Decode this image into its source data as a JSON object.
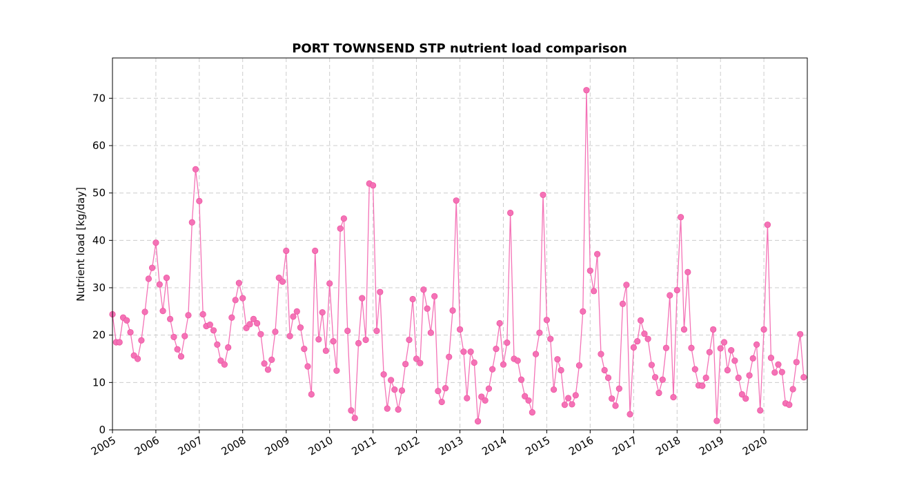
{
  "chart_data": {
    "type": "line",
    "title": "PORT TOWNSEND STP nutrient load comparison",
    "xlabel": "",
    "ylabel": "Nutrient load [kg/day]",
    "ylim": [
      0,
      78.5
    ],
    "xlim": [
      "2005-01-01",
      "2020-12-31"
    ],
    "yticks": [
      0,
      10,
      20,
      30,
      40,
      50,
      60,
      70
    ],
    "xticks": [
      "2005",
      "2006",
      "2007",
      "2008",
      "2009",
      "2010",
      "2011",
      "2012",
      "2013",
      "2014",
      "2015",
      "2016",
      "2017",
      "2018",
      "2019",
      "2020"
    ],
    "grid": true,
    "legend": "none",
    "color": "#f472b6",
    "series": [
      {
        "x_start": "2005-01",
        "x_step": "month",
        "values": [
          24.4,
          18.5,
          18.5,
          23.7,
          23.1,
          20.6,
          15.7,
          15.0,
          18.9,
          24.9,
          31.9,
          34.2,
          39.5,
          30.7,
          25.1,
          32.1,
          23.4,
          19.6,
          17.0,
          15.5,
          19.8,
          24.2,
          43.8,
          55.0,
          48.3,
          24.4,
          21.9,
          22.2,
          21.0,
          18.0,
          14.6,
          13.8,
          17.4,
          23.7,
          27.4,
          31.0,
          27.8,
          21.5,
          22.3,
          23.4,
          22.5,
          20.2,
          14.0,
          12.7,
          14.8,
          20.7,
          32.1,
          31.3,
          37.8,
          19.8,
          23.9,
          25.0,
          21.6,
          17.1,
          13.4,
          7.5,
          37.8,
          19.1,
          24.8,
          16.7,
          30.9,
          18.7,
          12.5,
          42.5,
          44.6,
          20.9,
          4.1,
          2.5,
          18.3,
          27.8,
          19.0,
          52.0,
          51.6,
          20.9,
          29.1,
          11.7,
          4.5,
          10.5,
          8.5,
          4.3,
          8.3,
          13.9,
          19.0,
          27.6,
          15.0,
          14.1,
          29.6,
          25.6,
          20.5,
          28.2,
          8.2,
          5.9,
          8.8,
          15.4,
          25.2,
          48.4,
          21.2,
          16.5,
          6.7,
          16.5,
          14.2,
          1.8,
          7.0,
          6.2,
          8.7,
          12.8,
          17.1,
          22.5,
          13.8,
          18.4,
          45.8,
          15.0,
          14.6,
          10.6,
          7.1,
          6.2,
          3.7,
          16.0,
          20.5,
          49.6,
          23.2,
          19.2,
          8.5,
          14.9,
          12.6,
          5.3,
          6.7,
          5.4,
          7.3,
          13.6,
          25.0,
          71.7,
          33.6,
          29.3,
          37.1,
          16.0,
          12.6,
          11.0,
          6.6,
          5.1,
          8.7,
          26.6,
          30.6,
          3.3,
          17.4,
          18.7,
          23.1,
          20.3,
          19.2,
          13.7,
          11.1,
          7.8,
          10.6,
          17.3,
          28.4,
          6.9,
          29.5,
          44.9,
          21.2,
          33.3,
          17.3,
          12.8,
          9.4,
          9.3,
          11.0,
          16.4,
          21.2,
          1.9,
          17.2,
          18.5,
          12.6,
          16.8,
          14.6,
          11.0,
          7.5,
          6.6,
          11.5,
          15.1,
          18.0,
          4.1,
          21.2,
          43.3,
          15.2,
          12.1,
          13.8,
          12.2,
          5.6,
          5.3,
          8.6,
          14.3,
          20.2,
          11.1
        ]
      }
    ]
  }
}
